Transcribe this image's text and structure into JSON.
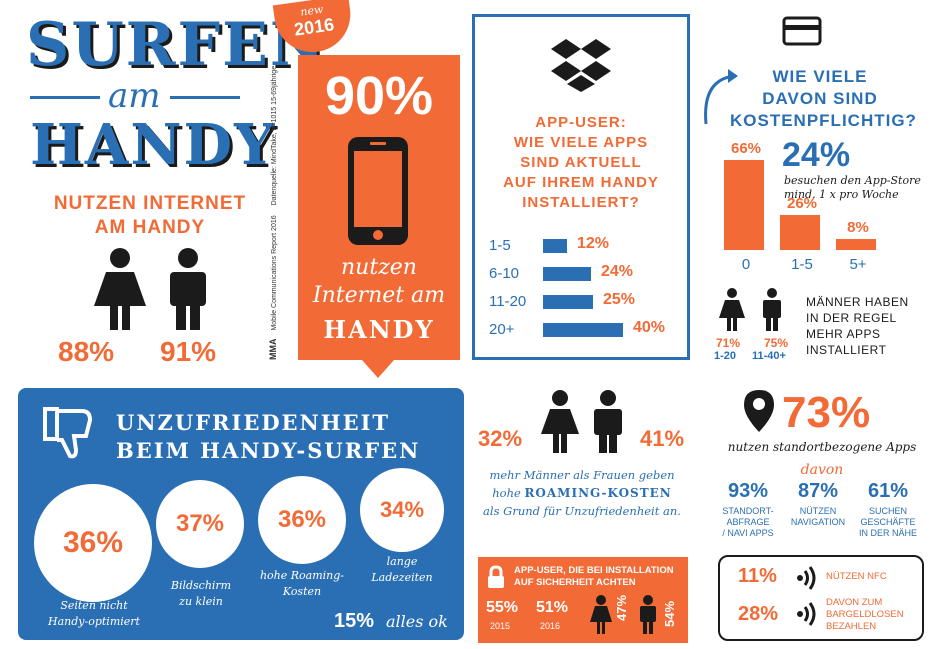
{
  "title": {
    "line1": "SURFEN",
    "line2": "am",
    "line3": "HANDY"
  },
  "left": {
    "heading_line1": "NUTZEN INTERNET",
    "heading_line2": "AM HANDY",
    "female_pct": "88%",
    "male_pct": "91%"
  },
  "center": {
    "badge_top": "new",
    "badge_year": "2016",
    "big_pct": "90%",
    "caption_line1": "nutzen",
    "caption_line2": "Internet am",
    "caption_line3": "HANDY",
    "side_note1": "Mobile Communications Report 2016",
    "side_note2": "Datenquelle: MindTake, n=1015 15-69jährige",
    "brand": "MMA"
  },
  "apps": {
    "heading": [
      "APP-USER:",
      "WIE VIELE APPS",
      "SIND AKTUELL",
      "AUF IHREM HANDY",
      "INSTALLIERT?"
    ],
    "rows": [
      {
        "label": "1-5",
        "value": "12%",
        "fraction": 0.12
      },
      {
        "label": "6-10",
        "value": "24%",
        "fraction": 0.24
      },
      {
        "label": "11-20",
        "value": "25%",
        "fraction": 0.25
      },
      {
        "label": "20+",
        "value": "40%",
        "fraction": 0.4
      }
    ]
  },
  "paid": {
    "heading": [
      "WIE VIELE",
      "DAVON SIND",
      "KOSTENPFLICHTIG?"
    ],
    "store_pct": "24%",
    "store_text1": "besuchen den App-Store",
    "store_text2": "mind. 1 x pro Woche",
    "bars": [
      {
        "label": "0",
        "value": "66%",
        "fraction": 0.66
      },
      {
        "label": "1-5",
        "value": "26%",
        "fraction": 0.26
      },
      {
        "label": "5+",
        "value": "8%",
        "fraction": 0.08
      }
    ],
    "female_pct": "71%",
    "female_range": "1-20",
    "male_pct": "75%",
    "male_range": "11-40+",
    "note": [
      "MÄNNER HABEN",
      "IN DER REGEL",
      "MEHR APPS",
      "INSTALLIERT"
    ]
  },
  "dissatisfaction": {
    "heading1": "UNZUFRIEDENHEIT",
    "heading2": "BEIM HANDY-SURFEN",
    "items": [
      {
        "value": "36%",
        "label1": "Seiten nicht",
        "label2": "Handy-optimiert"
      },
      {
        "value": "37%",
        "label1": "Bildschirm",
        "label2": "zu klein"
      },
      {
        "value": "36%",
        "label1": "hohe Roaming-",
        "label2": "Kosten"
      },
      {
        "value": "34%",
        "label1": "lange",
        "label2": "Ladezeiten"
      }
    ],
    "ok_pct": "15%",
    "ok_text": "alles ok"
  },
  "roaming": {
    "female_pct": "32%",
    "male_pct": "41%",
    "text1": "mehr Männer als Frauen geben",
    "text2a": "hohe",
    "text2b": "ROAMING-KOSTEN",
    "text3": "als Grund für Unzufriedenheit an."
  },
  "security": {
    "heading1": "APP-USER, DIE BEI INSTALLATION",
    "heading2": "AUF SICHERHEIT ACHTEN",
    "v2015": "55%",
    "y2015": "2015",
    "v2016": "51%",
    "y2016": "2016",
    "female_pct": "47%",
    "male_pct": "54%"
  },
  "location": {
    "big_pct": "73%",
    "subtitle": "nutzen standortbezogene Apps",
    "davon": "davon",
    "items": [
      {
        "value": "93%",
        "label": [
          "STANDORT-",
          "ABFRAGE",
          "/ NAVI APPS"
        ]
      },
      {
        "value": "87%",
        "label": [
          "NÜTZEN",
          "NAVIGATION"
        ]
      },
      {
        "value": "61%",
        "label": [
          "SUCHEN",
          "GESCHÄFTE",
          "IN DER NÄHE"
        ]
      }
    ]
  },
  "nfc": {
    "nfc_pct": "11%",
    "nfc_text": "NÜTZEN NFC",
    "pay_pct": "28%",
    "pay_text1": "DAVON ZUM",
    "pay_text2": "BARGELDLOSEN",
    "pay_text3": "BEZAHLEN"
  }
}
